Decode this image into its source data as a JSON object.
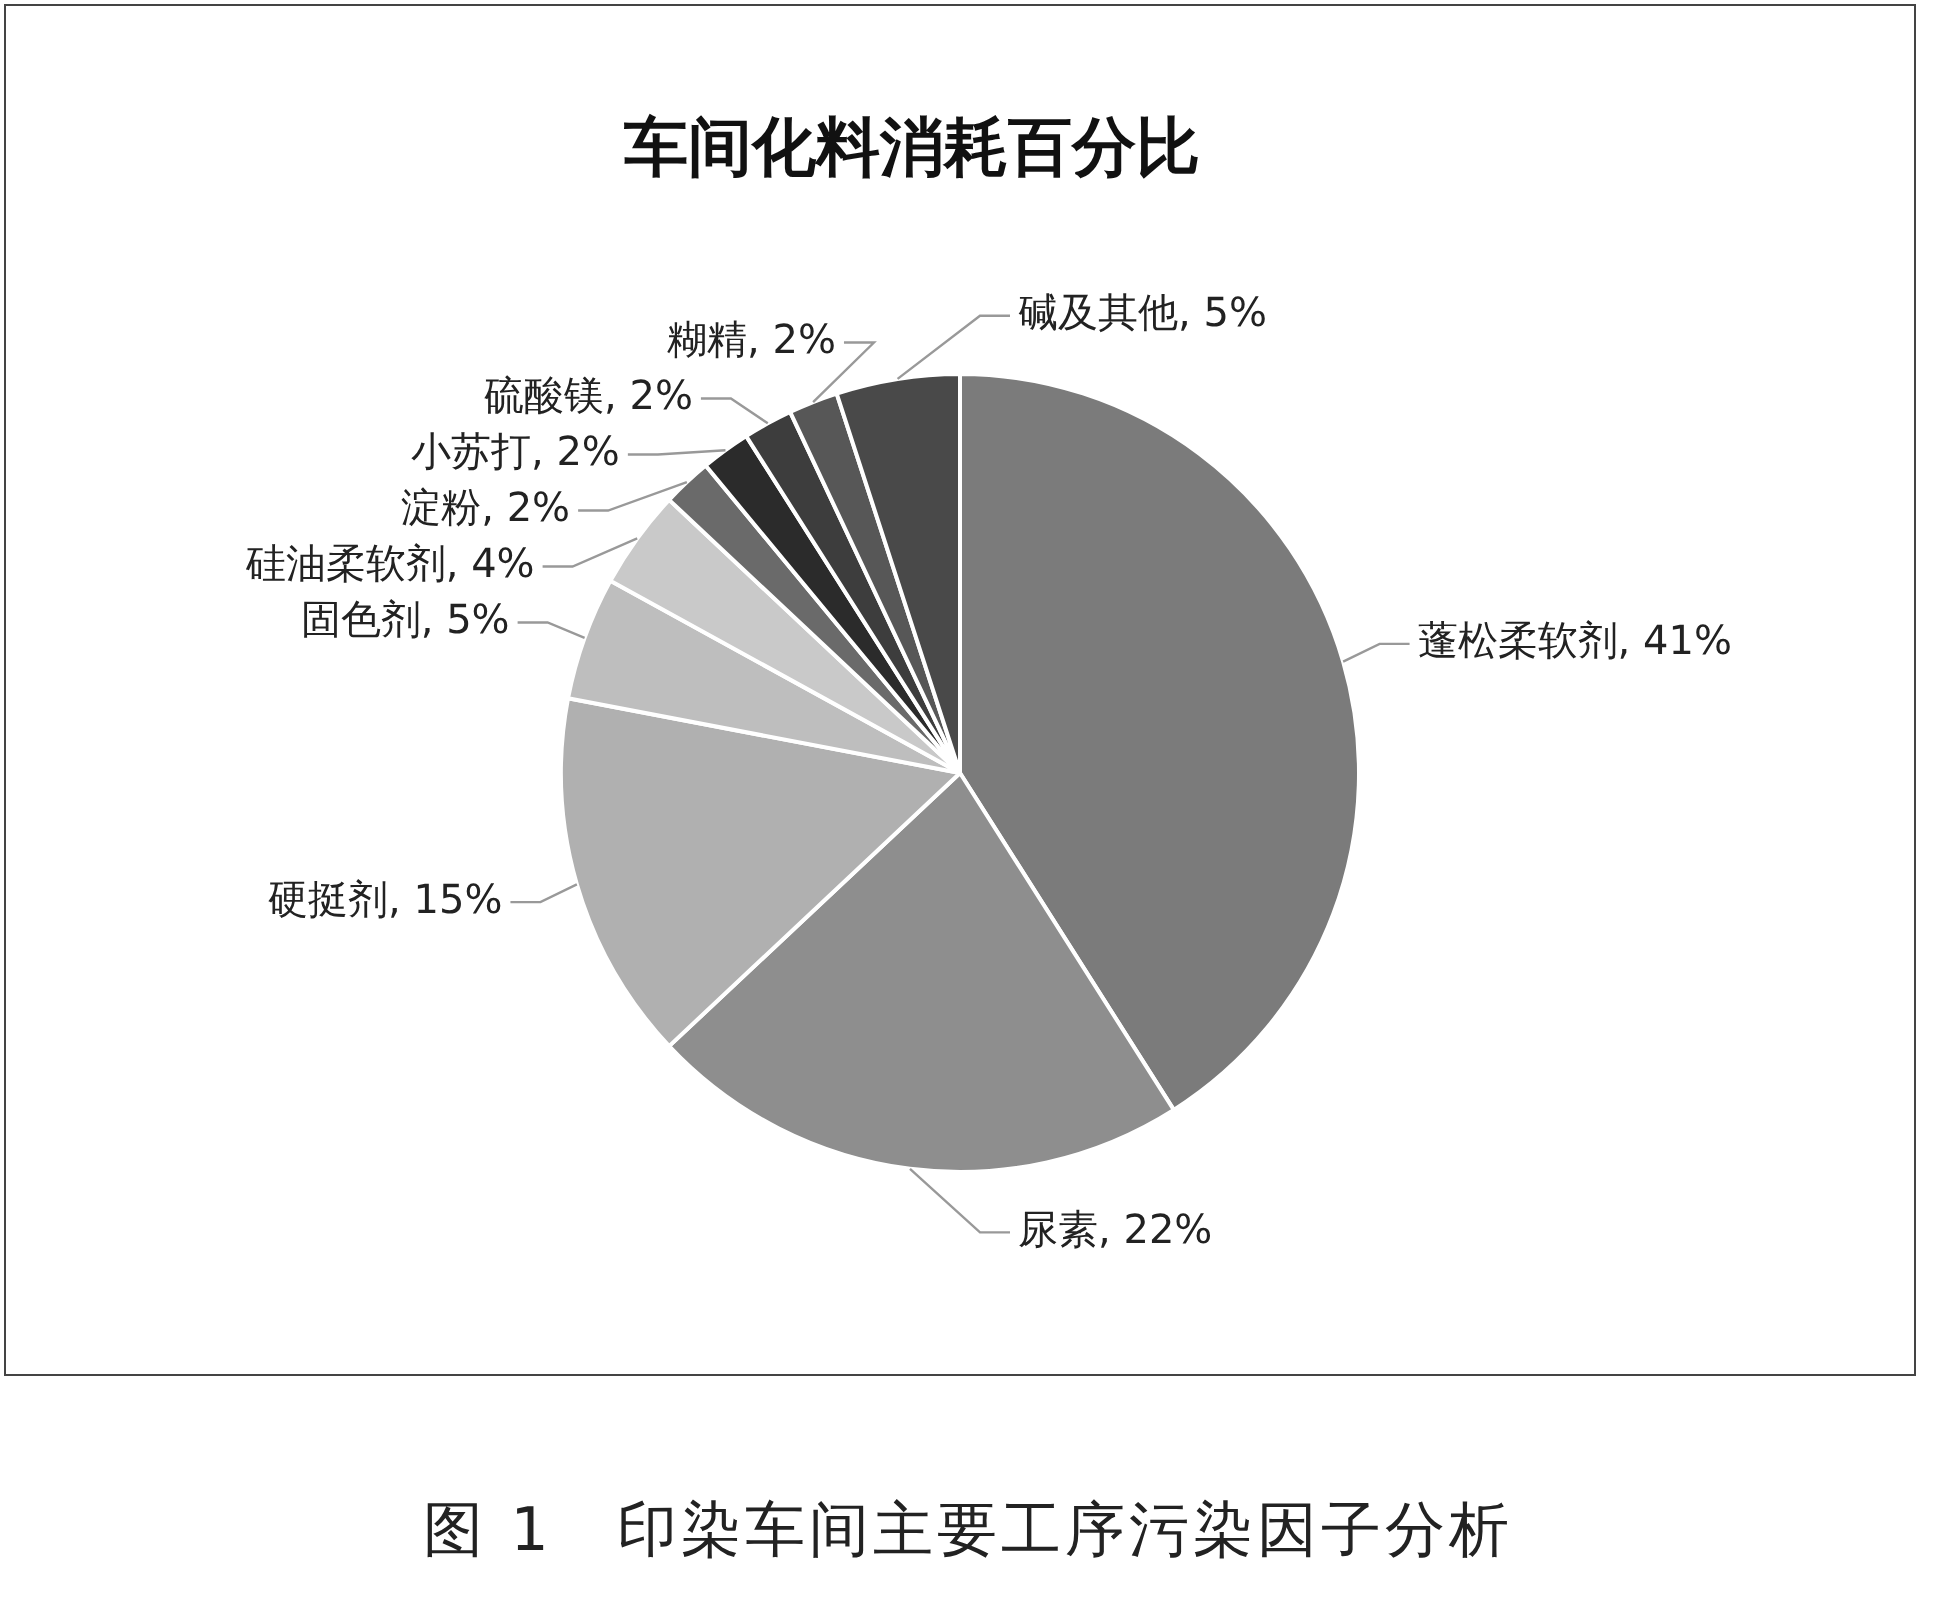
{
  "chart_data": {
    "type": "pie",
    "title": "车间化料消耗百分比",
    "categories": [
      "蓬松柔软剂",
      "尿素",
      "硬挺剂",
      "固色剂",
      "硅油柔软剂",
      "淀粉",
      "小苏打",
      "硫酸镁",
      "糊精",
      "碱及其他"
    ],
    "values": [
      41,
      22,
      15,
      5,
      4,
      2,
      2,
      2,
      2,
      5
    ],
    "value_labels": [
      "41%",
      "22%",
      "15%",
      "5%",
      "4%",
      "2%",
      "2%",
      "2%",
      "2%",
      "5%"
    ],
    "colors": [
      "#7b7b7b",
      "#8e8e8e",
      "#b0b0b0",
      "#bebebe",
      "#c9c9c9",
      "#6a6a6a",
      "#2b2b2b",
      "#3d3d3d",
      "#575757",
      "#494949"
    ],
    "legend": false,
    "annotations": [
      "图 1　印染车间主要工序污染因子分析"
    ]
  }
}
